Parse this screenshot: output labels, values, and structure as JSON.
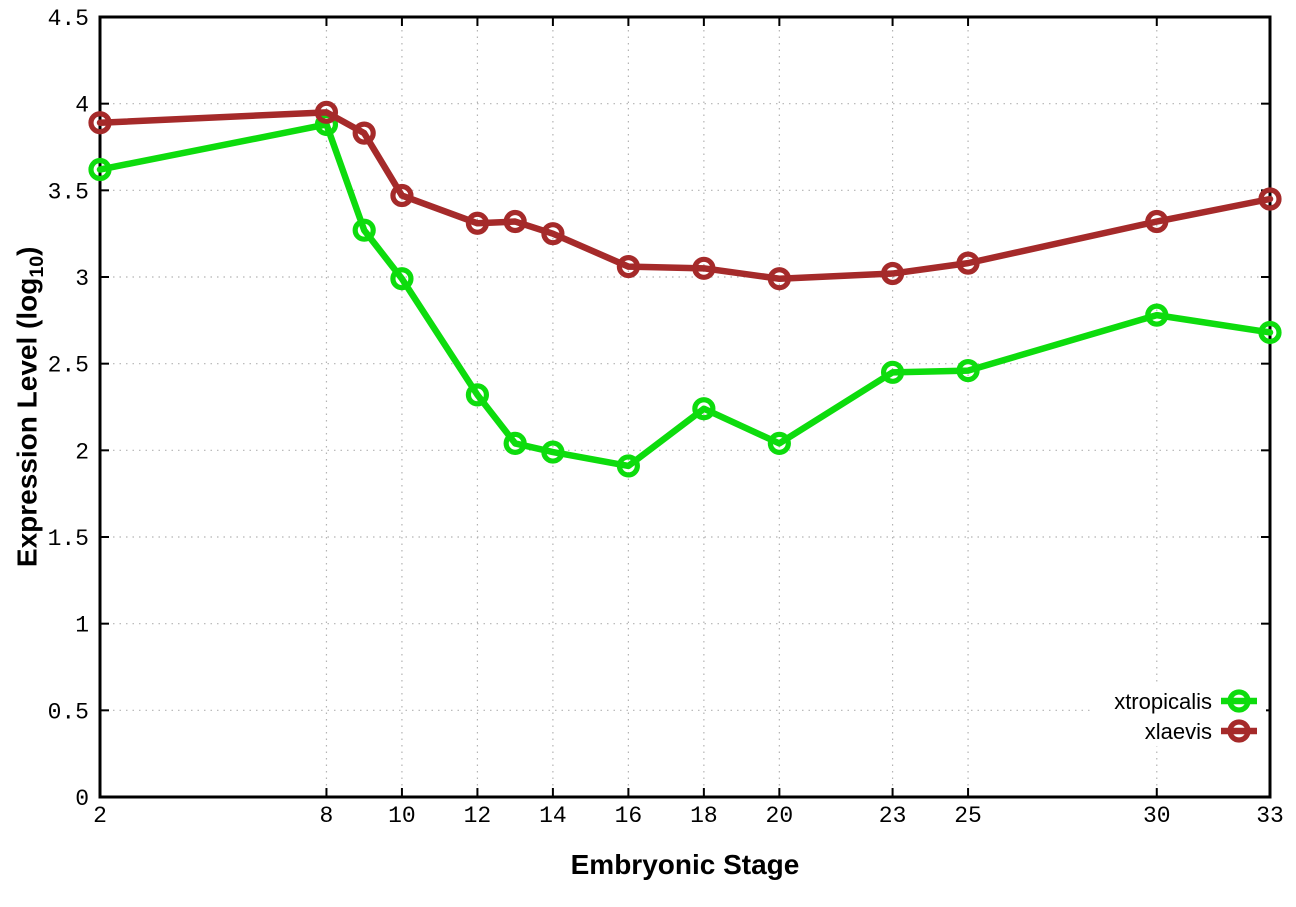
{
  "figure": {
    "background": "#ffffff",
    "border_color": "#000000",
    "grid_color": "#b3b3b3",
    "text_color": "#000000"
  },
  "chart_data": {
    "type": "line",
    "title": "",
    "xlabel": "Embryonic Stage",
    "ylabel": "Expression Level (log10)",
    "ylabel_rich": {
      "main": "Expression Level (log",
      "sub": "10",
      "close": ")"
    },
    "xlim": [
      2,
      33
    ],
    "ylim": [
      0,
      4.5
    ],
    "grid": true,
    "legend_position": "bottom-right",
    "x": [
      2,
      8,
      9,
      10,
      12,
      13,
      14,
      16,
      18,
      20,
      23,
      25,
      30,
      33
    ],
    "xticks": [
      2,
      8,
      10,
      12,
      14,
      16,
      18,
      20,
      23,
      25,
      30,
      33
    ],
    "xtick_labels": [
      "2",
      "8",
      "10",
      "12",
      "14",
      "16",
      "18",
      "20",
      "23",
      "25",
      "30",
      "33"
    ],
    "yticks": [
      0,
      0.5,
      1,
      1.5,
      2,
      2.5,
      3,
      3.5,
      4,
      4.5
    ],
    "ytick_labels": [
      "0",
      "0.5",
      "1",
      "1.5",
      "2",
      "2.5",
      "3",
      "3.5",
      "4",
      "4.5"
    ],
    "series": [
      {
        "name": "xtropicalis",
        "color": "#0ddc0d",
        "marker": "open-circle",
        "values": [
          3.62,
          3.88,
          3.27,
          2.99,
          2.32,
          2.04,
          1.99,
          1.91,
          2.24,
          2.04,
          2.45,
          2.46,
          2.78,
          2.68
        ]
      },
      {
        "name": "xlaevis",
        "color": "#a52a2a",
        "marker": "open-circle",
        "values": [
          3.89,
          3.95,
          3.83,
          3.47,
          3.31,
          3.32,
          3.25,
          3.06,
          3.05,
          2.99,
          3.02,
          3.08,
          3.32,
          3.45
        ]
      }
    ]
  }
}
